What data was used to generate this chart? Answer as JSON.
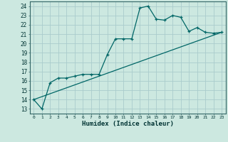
{
  "xlabel": "Humidex (Indice chaleur)",
  "bg_color": "#cce8e0",
  "grid_color": "#aacccc",
  "line_color": "#006666",
  "xlim": [
    -0.5,
    23.5
  ],
  "ylim": [
    12.5,
    24.5
  ],
  "xticks": [
    0,
    1,
    2,
    3,
    4,
    5,
    6,
    7,
    8,
    9,
    10,
    11,
    12,
    13,
    14,
    15,
    16,
    17,
    18,
    19,
    20,
    21,
    22,
    23
  ],
  "yticks": [
    13,
    14,
    15,
    16,
    17,
    18,
    19,
    20,
    21,
    22,
    23,
    24
  ],
  "series1_x": [
    0,
    1,
    2,
    3,
    4,
    5,
    6,
    7,
    8,
    9,
    10,
    11,
    12,
    13,
    14,
    15,
    16,
    17,
    18,
    19,
    20,
    21,
    22,
    23
  ],
  "series1_y": [
    14.0,
    13.0,
    15.8,
    16.3,
    16.3,
    16.5,
    16.7,
    16.7,
    16.7,
    18.8,
    20.5,
    20.5,
    20.5,
    23.8,
    24.0,
    22.6,
    22.5,
    23.0,
    22.8,
    21.3,
    21.7,
    21.2,
    21.1,
    21.2
  ],
  "series2_x": [
    0,
    23
  ],
  "series2_y": [
    14.0,
    21.2
  ]
}
